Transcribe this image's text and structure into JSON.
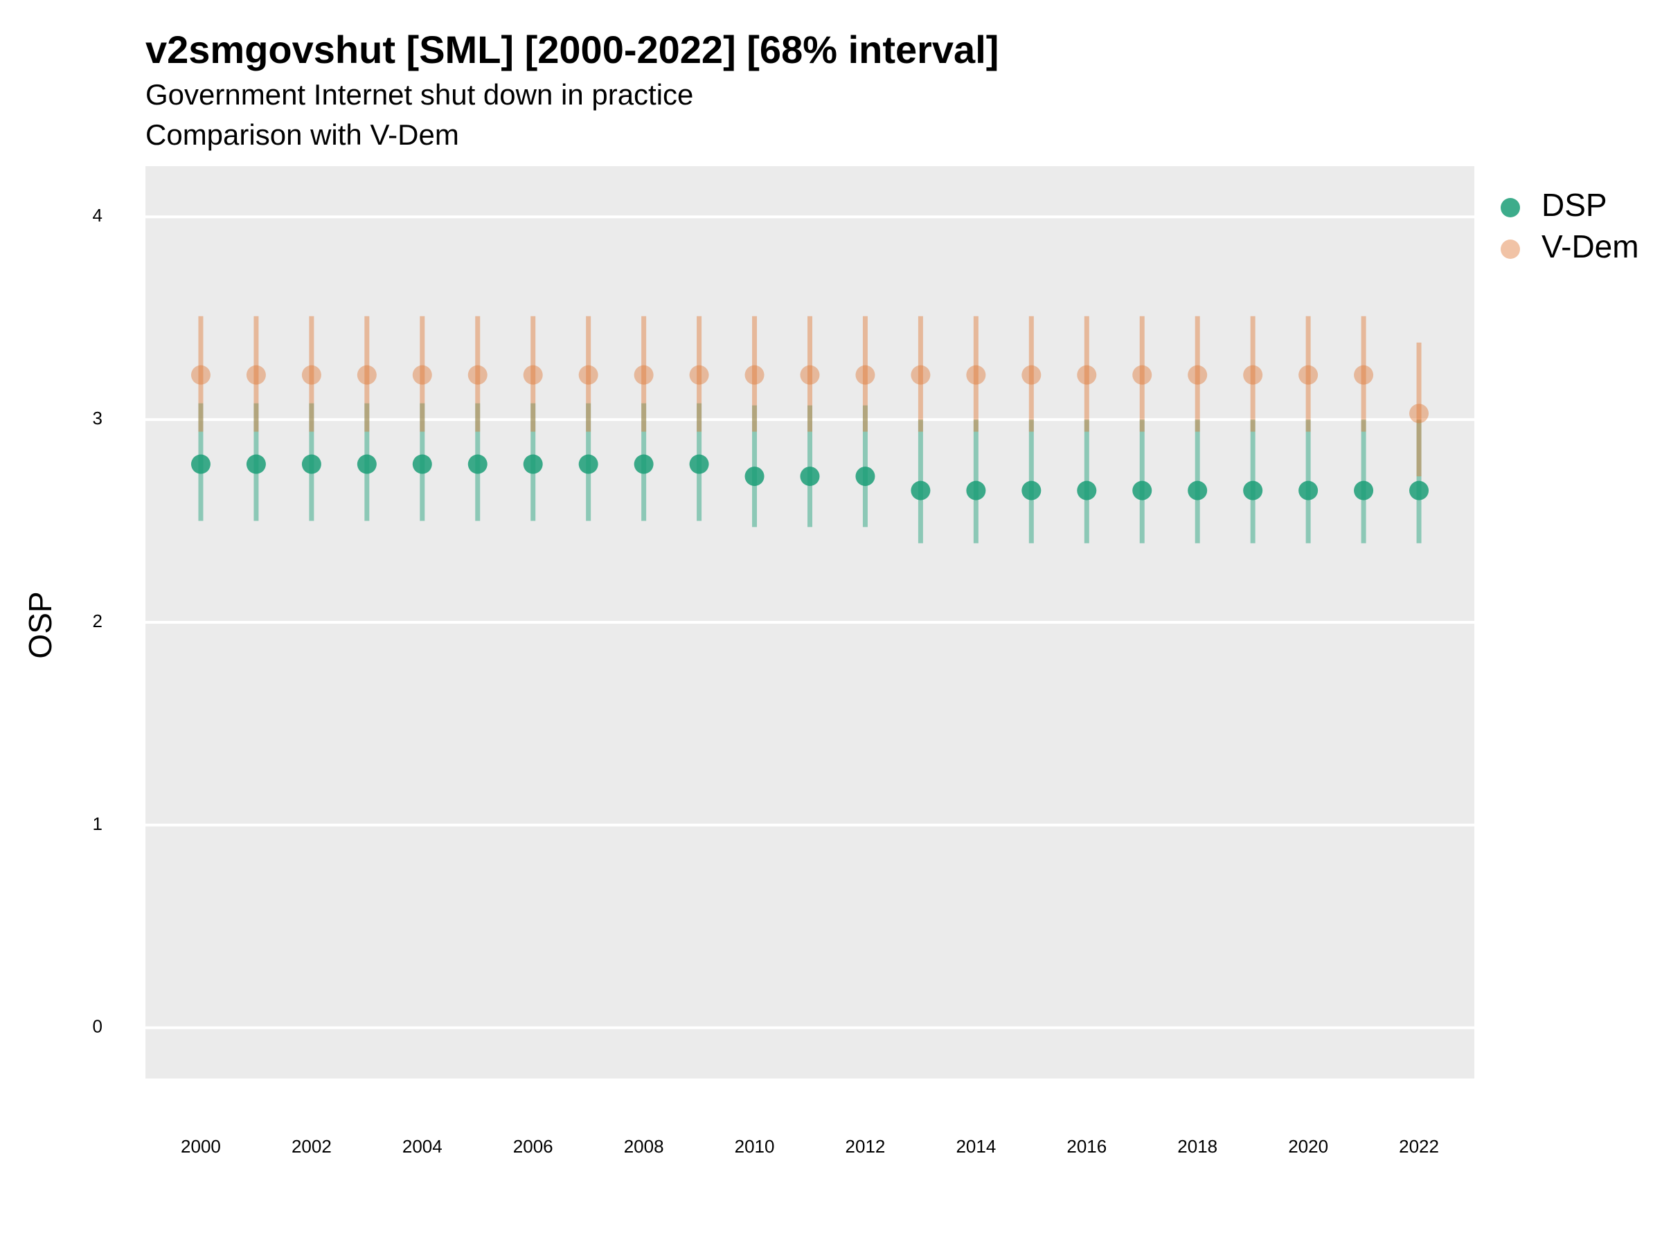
{
  "chart_data": {
    "type": "pointrange",
    "title": "v2smgovshut [SML] [2000-2022] [68% interval]",
    "subtitle": [
      "Government Internet shut down in practice",
      "Comparison with V-Dem"
    ],
    "y_label": "OSP",
    "x": [
      2000,
      2001,
      2002,
      2003,
      2004,
      2005,
      2006,
      2007,
      2008,
      2009,
      2010,
      2011,
      2012,
      2013,
      2014,
      2015,
      2016,
      2017,
      2018,
      2019,
      2020,
      2021,
      2022
    ],
    "series": [
      {
        "name": "DSP",
        "color": "#1b9e77",
        "values": [
          2.78,
          2.78,
          2.78,
          2.78,
          2.78,
          2.78,
          2.78,
          2.78,
          2.78,
          2.78,
          2.72,
          2.72,
          2.72,
          2.65,
          2.65,
          2.65,
          2.65,
          2.65,
          2.65,
          2.65,
          2.65,
          2.65,
          2.65
        ],
        "lower": [
          2.5,
          2.5,
          2.5,
          2.5,
          2.5,
          2.5,
          2.5,
          2.5,
          2.5,
          2.5,
          2.47,
          2.47,
          2.47,
          2.39,
          2.39,
          2.39,
          2.39,
          2.39,
          2.39,
          2.39,
          2.39,
          2.39,
          2.39
        ],
        "upper": [
          3.08,
          3.08,
          3.08,
          3.08,
          3.08,
          3.08,
          3.08,
          3.08,
          3.08,
          3.08,
          3.07,
          3.07,
          3.07,
          3.0,
          3.0,
          3.0,
          3.0,
          3.0,
          3.0,
          3.0,
          3.0,
          3.0,
          3.0
        ]
      },
      {
        "name": "V-Dem",
        "color": "#e07b39",
        "values": [
          3.22,
          3.22,
          3.22,
          3.22,
          3.22,
          3.22,
          3.22,
          3.22,
          3.22,
          3.22,
          3.22,
          3.22,
          3.22,
          3.22,
          3.22,
          3.22,
          3.22,
          3.22,
          3.22,
          3.22,
          3.22,
          3.22,
          3.03
        ],
        "lower": [
          2.94,
          2.94,
          2.94,
          2.94,
          2.94,
          2.94,
          2.94,
          2.94,
          2.94,
          2.94,
          2.94,
          2.94,
          2.94,
          2.94,
          2.94,
          2.94,
          2.94,
          2.94,
          2.94,
          2.94,
          2.94,
          2.94,
          2.72
        ],
        "upper": [
          3.51,
          3.51,
          3.51,
          3.51,
          3.51,
          3.51,
          3.51,
          3.51,
          3.51,
          3.51,
          3.51,
          3.51,
          3.51,
          3.51,
          3.51,
          3.51,
          3.51,
          3.51,
          3.51,
          3.51,
          3.51,
          3.51,
          3.38
        ]
      }
    ],
    "xlim": [
      1999,
      2023
    ],
    "xticks": [
      2000,
      2002,
      2004,
      2006,
      2008,
      2010,
      2012,
      2014,
      2016,
      2018,
      2020,
      2022
    ],
    "ylim": [
      -0.25,
      4.25
    ],
    "yticks": [
      0,
      1,
      2,
      3,
      4
    ],
    "grid": true,
    "legend": "right"
  }
}
